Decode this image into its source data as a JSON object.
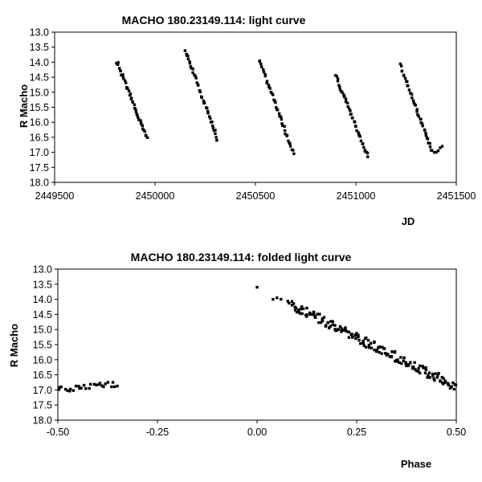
{
  "chart_data": [
    {
      "type": "scatter",
      "title": "MACHO 180.23149.114: light curve",
      "xlabel": "JD",
      "ylabel": "R Macho",
      "xlim": [
        2449500,
        2451500
      ],
      "ylim": [
        13.0,
        18.0
      ],
      "y_inverted": true,
      "grid": false,
      "legend": "none",
      "marker_color": "#000000",
      "xticks": [
        "2449500",
        "2450000",
        "2450500",
        "2451000",
        "2451500"
      ],
      "yticks": [
        "13.0",
        "13.5",
        "14.0",
        "14.5",
        "15.0",
        "15.5",
        "16.0",
        "16.5",
        "17.0",
        "17.5",
        "18.0"
      ],
      "segments": [
        {
          "x_start": 2449810,
          "y_start": 14.0,
          "x_end": 2449960,
          "y_end": 16.55
        },
        {
          "x_start": 2450150,
          "y_start": 13.6,
          "x_end": 2450310,
          "y_end": 16.55
        },
        {
          "x_start": 2450520,
          "y_start": 13.95,
          "x_end": 2450690,
          "y_end": 17.05
        },
        {
          "x_start": 2450900,
          "y_start": 14.45,
          "x_end": 2451060,
          "y_end": 17.15
        },
        {
          "x_start": 2451220,
          "y_start": 14.1,
          "x_end": 2451380,
          "y_end": 16.95
        }
      ],
      "extra_points": [
        {
          "x": 2451390,
          "y": 17.0
        },
        {
          "x": 2451400,
          "y": 17.0
        },
        {
          "x": 2451410,
          "y": 16.95
        },
        {
          "x": 2451420,
          "y": 16.85
        },
        {
          "x": 2451430,
          "y": 16.8
        }
      ]
    },
    {
      "type": "scatter",
      "title": "MACHO 180.23149.114: folded light curve",
      "xlabel": "Phase",
      "ylabel": "R Macho",
      "xlim": [
        -0.5,
        0.5
      ],
      "ylim": [
        13.0,
        18.0
      ],
      "y_inverted": true,
      "grid": false,
      "legend": "none",
      "marker_color": "#000000",
      "xticks": [
        "-0.50",
        "-0.25",
        "0.00",
        "0.25",
        "0.50"
      ],
      "yticks": [
        "13.0",
        "13.5",
        "14.0",
        "14.5",
        "15.0",
        "15.5",
        "16.0",
        "16.5",
        "17.0",
        "17.5",
        "18.0"
      ],
      "points_sparse": [
        {
          "x": 0.0,
          "y": 13.6
        },
        {
          "x": 0.04,
          "y": 14.0
        },
        {
          "x": 0.05,
          "y": 13.95
        },
        {
          "x": 0.06,
          "y": 14.0
        }
      ],
      "band_main": {
        "x_start": 0.08,
        "y_start": 14.15,
        "x_end": 0.5,
        "y_end": 16.9,
        "scatter": 0.15
      },
      "band_left": {
        "x_start": -0.5,
        "y_start": 17.0,
        "x_end": -0.35,
        "y_end": 16.8,
        "scatter": 0.1
      }
    }
  ]
}
